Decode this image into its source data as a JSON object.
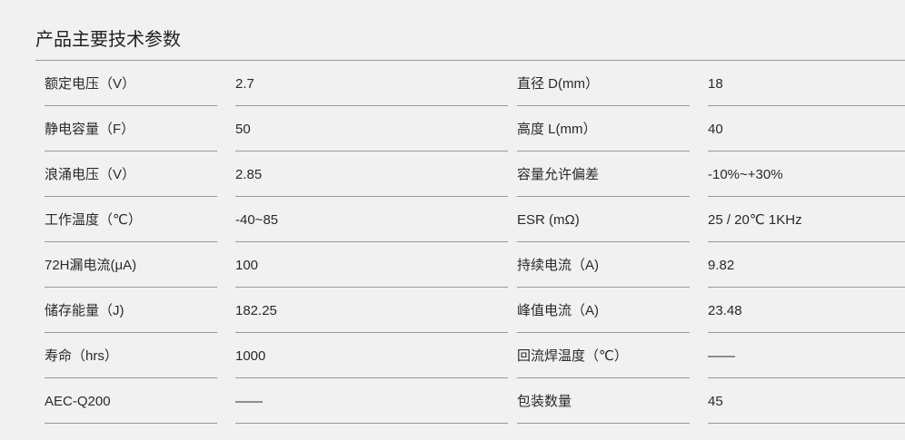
{
  "title": "产品主要技术参数",
  "rows": [
    {
      "label_left": "额定电压（V）",
      "value_left": "2.7",
      "label_right": "直径 D(mm）",
      "value_right": "18"
    },
    {
      "label_left": "静电容量（F）",
      "value_left": "50",
      "label_right": "高度 L(mm）",
      "value_right": "40"
    },
    {
      "label_left": "浪涌电压（V）",
      "value_left": "2.85",
      "label_right": "容量允许偏差",
      "value_right": "-10%~+30%"
    },
    {
      "label_left": "工作温度（℃）",
      "value_left": "-40~85",
      "label_right": "ESR (mΩ)",
      "value_right": "25 / 20℃ 1KHz"
    },
    {
      "label_left": "72H漏电流(μA)",
      "value_left": "100",
      "label_right": "持续电流（A)",
      "value_right": "9.82"
    },
    {
      "label_left": "储存能量（J)",
      "value_left": "182.25",
      "label_right": "峰值电流（A)",
      "value_right": "23.48"
    },
    {
      "label_left": "寿命（hrs）",
      "value_left": "1000",
      "label_right": "回流焊温度（℃）",
      "value_right": "——"
    },
    {
      "label_left": "AEC-Q200",
      "value_left": "——",
      "label_right": "包装数量",
      "value_right": "45"
    }
  ]
}
